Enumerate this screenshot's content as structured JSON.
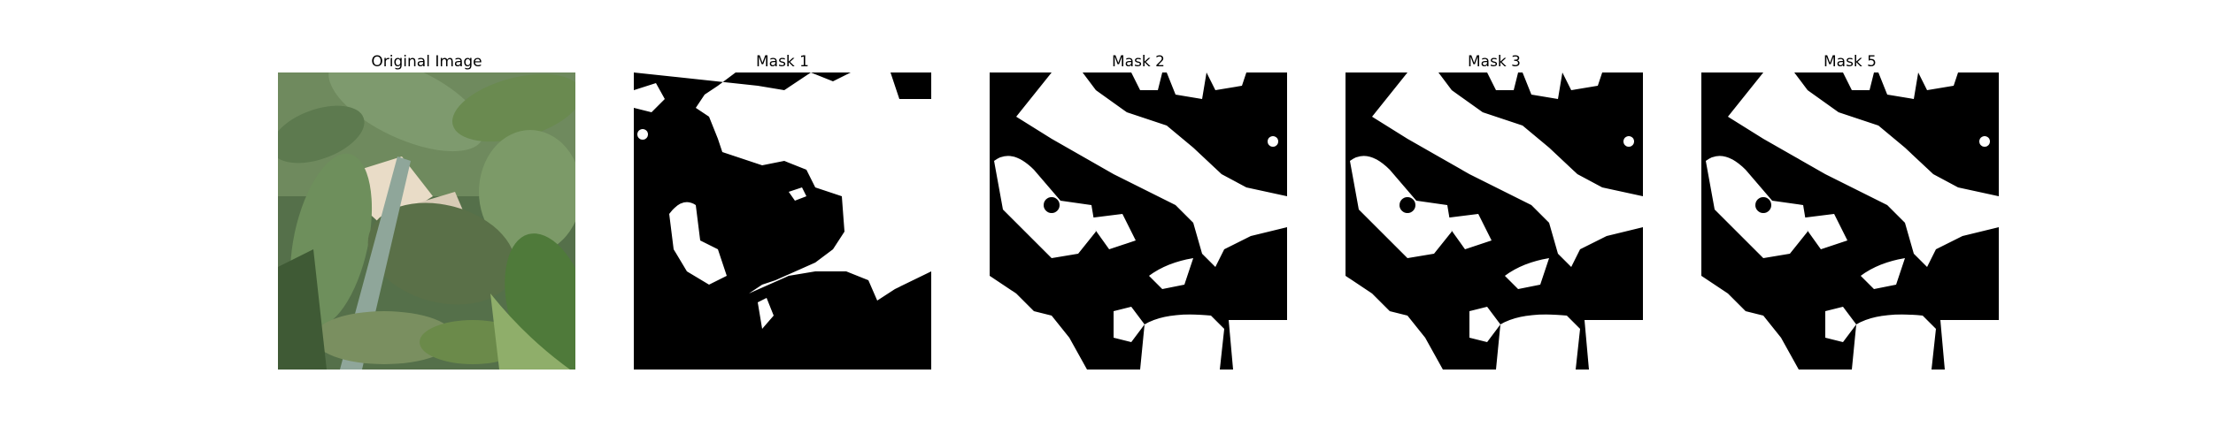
{
  "panels": [
    {
      "title": "Original Image"
    },
    {
      "title": "Mask 1"
    },
    {
      "title": "Mask 2"
    },
    {
      "title": "Mask 3"
    },
    {
      "title": "Mask 5"
    }
  ]
}
